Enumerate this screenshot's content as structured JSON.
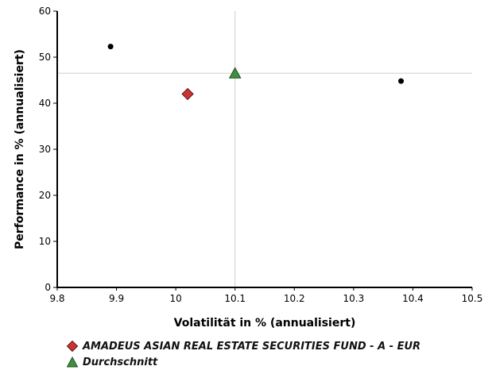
{
  "chart_data": {
    "type": "scatter",
    "xlabel": "Volatilität in % (annualisiert)",
    "ylabel": "Performance in % (annualisiert)",
    "xlim": [
      9.8,
      10.5
    ],
    "ylim": [
      0,
      60
    ],
    "x_ticks": [
      "9.8",
      "9.9",
      "10",
      "10.1",
      "10.2",
      "10.3",
      "10.4",
      "10.5"
    ],
    "y_ticks": [
      "0",
      "10",
      "20",
      "30",
      "40",
      "50",
      "60"
    ],
    "grid": false,
    "legend_position": "bottom-left",
    "reference_lines": {
      "x": 10.1,
      "y": 46.5
    },
    "series": [
      {
        "name": "AMADEUS ASIAN REAL ESTATE SECURITIES FUND - A - EUR",
        "marker": "diamond",
        "color": "#cc3333",
        "points": [
          {
            "x": 10.02,
            "y": 42
          }
        ]
      },
      {
        "name": "Durchschnitt",
        "marker": "triangle",
        "color": "#3f8f3f",
        "points": [
          {
            "x": 10.1,
            "y": 46.5
          }
        ]
      },
      {
        "marker": "dot",
        "color": "#000000",
        "points": [
          {
            "x": 9.89,
            "y": 52.3
          },
          {
            "x": 10.38,
            "y": 44.8
          }
        ]
      }
    ]
  },
  "legend": [
    {
      "label": "AMADEUS ASIAN REAL ESTATE SECURITIES FUND - A - EUR",
      "marker": "diamond",
      "color": "#cc3333"
    },
    {
      "label": "Durchschnitt",
      "marker": "triangle",
      "color": "#3f8f3f"
    }
  ]
}
